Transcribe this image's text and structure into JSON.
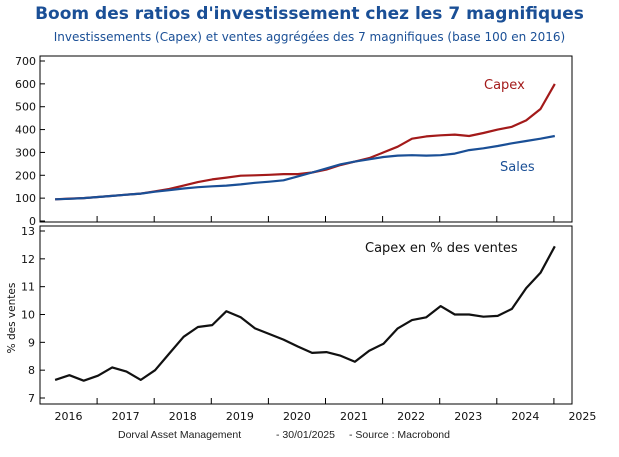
{
  "header": {
    "title": "Boom des ratios d'investissement chez les 7 magnifiques",
    "subtitle": "Investissements (Capex) et ventes aggrégées des 7 magnifiques (base 100 en 2016)"
  },
  "footer": {
    "source_org": "Dorval Asset Management",
    "date": "- 30/01/2025",
    "source": "- Source : Macrobond"
  },
  "colors": {
    "capex": "#a31a1a",
    "sales": "#1a4f96",
    "ratio": "#111111",
    "title": "#1a4f96"
  },
  "chart_data": [
    {
      "type": "line",
      "title": "",
      "xlabel": "",
      "ylabel": "",
      "ylim": [
        0,
        700
      ],
      "yticks": [
        "0",
        "100",
        "200",
        "300",
        "400",
        "500",
        "600",
        "700"
      ],
      "x": [
        "2016Q1",
        "2016Q2",
        "2016Q3",
        "2016Q4",
        "2017Q1",
        "2017Q2",
        "2017Q3",
        "2017Q4",
        "2018Q1",
        "2018Q2",
        "2018Q3",
        "2018Q4",
        "2019Q1",
        "2019Q2",
        "2019Q3",
        "2019Q4",
        "2020Q1",
        "2020Q2",
        "2020Q3",
        "2020Q4",
        "2021Q1",
        "2021Q2",
        "2021Q3",
        "2021Q4",
        "2022Q1",
        "2022Q2",
        "2022Q3",
        "2022Q4",
        "2023Q1",
        "2023Q2",
        "2023Q3",
        "2023Q4",
        "2024Q1",
        "2024Q2",
        "2024Q3",
        "2024Q4"
      ],
      "series": [
        {
          "name": "Capex",
          "values": [
            95,
            98,
            100,
            105,
            110,
            115,
            120,
            130,
            140,
            155,
            170,
            182,
            190,
            198,
            200,
            202,
            205,
            205,
            212,
            225,
            245,
            260,
            275,
            300,
            325,
            360,
            370,
            375,
            378,
            372,
            385,
            400,
            412,
            440,
            490,
            600
          ]
        },
        {
          "name": "Sales",
          "values": [
            95,
            97,
            100,
            105,
            110,
            115,
            120,
            128,
            135,
            142,
            148,
            152,
            155,
            160,
            167,
            172,
            178,
            195,
            212,
            230,
            248,
            260,
            270,
            280,
            286,
            288,
            286,
            288,
            295,
            310,
            318,
            328,
            340,
            350,
            360,
            372
          ]
        }
      ]
    },
    {
      "type": "line",
      "title": "",
      "xlabel": "",
      "ylabel": "% des ventes",
      "ylim": [
        7,
        13
      ],
      "yticks": [
        "7",
        "8",
        "9",
        "10",
        "11",
        "12",
        "13"
      ],
      "xticks": [
        "2016",
        "2017",
        "2018",
        "2019",
        "2020",
        "2021",
        "2022",
        "2023",
        "2024",
        "2025"
      ],
      "x": [
        "2016Q1",
        "2016Q2",
        "2016Q3",
        "2016Q4",
        "2017Q1",
        "2017Q2",
        "2017Q3",
        "2017Q4",
        "2018Q1",
        "2018Q2",
        "2018Q3",
        "2018Q4",
        "2019Q1",
        "2019Q2",
        "2019Q3",
        "2019Q4",
        "2020Q1",
        "2020Q2",
        "2020Q3",
        "2020Q4",
        "2021Q1",
        "2021Q2",
        "2021Q3",
        "2021Q4",
        "2022Q1",
        "2022Q2",
        "2022Q3",
        "2022Q4",
        "2023Q1",
        "2023Q2",
        "2023Q3",
        "2023Q4",
        "2024Q1",
        "2024Q2",
        "2024Q3",
        "2024Q4"
      ],
      "series": [
        {
          "name": "Capex en % des ventes",
          "values": [
            7.65,
            7.82,
            7.62,
            7.8,
            8.1,
            7.95,
            7.65,
            8.0,
            8.6,
            9.2,
            9.55,
            9.62,
            10.12,
            9.9,
            9.5,
            9.3,
            9.1,
            8.85,
            8.62,
            8.65,
            8.52,
            8.3,
            8.7,
            8.95,
            9.5,
            9.8,
            9.9,
            10.3,
            10.0,
            10.0,
            9.92,
            9.95,
            10.2,
            10.95,
            11.5,
            12.45
          ]
        }
      ]
    }
  ]
}
